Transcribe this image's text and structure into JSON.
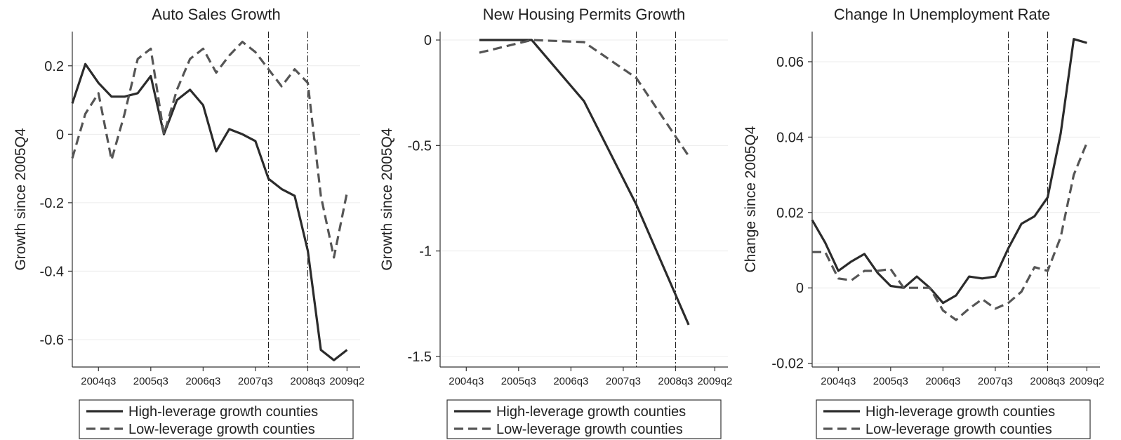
{
  "chart_data": [
    {
      "type": "line",
      "title": "Auto Sales Growth",
      "ylabel": "Growth since 2005Q4",
      "xlabel": "",
      "x_ticks": [
        "2004q3",
        "2005q3",
        "2006q3",
        "2007q3",
        "2008q3",
        "2009q2"
      ],
      "y_ticks": [
        0.2,
        0,
        -0.2,
        -0.4,
        -0.6
      ],
      "y_tick_labels": [
        "0.2",
        "0",
        "-0.2",
        "-0.4",
        "-0.6"
      ],
      "ylim": [
        -0.68,
        0.3
      ],
      "xlim": [
        "2004q1",
        "2009q3"
      ],
      "vertical_lines": [
        "2007q4",
        "2008q3"
      ],
      "grid": true,
      "legend_position": "bottom",
      "series": [
        {
          "name": "High-leverage growth counties",
          "style": "solid",
          "x": [
            "2004q1",
            "2004q2",
            "2004q3",
            "2004q4",
            "2005q1",
            "2005q2",
            "2005q3",
            "2005q4",
            "2006q1",
            "2006q2",
            "2006q3",
            "2006q4",
            "2007q1",
            "2007q2",
            "2007q3",
            "2007q4",
            "2008q1",
            "2008q2",
            "2008q3",
            "2008q4",
            "2009q1",
            "2009q2"
          ],
          "y": [
            0.09,
            0.205,
            0.15,
            0.11,
            0.11,
            0.12,
            0.17,
            0.0,
            0.1,
            0.13,
            0.085,
            -0.05,
            0.015,
            0.0,
            -0.02,
            -0.13,
            -0.16,
            -0.18,
            -0.34,
            -0.63,
            -0.66,
            -0.63
          ]
        },
        {
          "name": "Low-leverage growth counties",
          "style": "dashed",
          "x": [
            "2004q1",
            "2004q2",
            "2004q3",
            "2004q4",
            "2005q1",
            "2005q2",
            "2005q3",
            "2005q4",
            "2006q1",
            "2006q2",
            "2006q3",
            "2006q4",
            "2007q1",
            "2007q2",
            "2007q3",
            "2007q4",
            "2008q1",
            "2008q2",
            "2008q3",
            "2008q4",
            "2009q1",
            "2009q2"
          ],
          "y": [
            -0.07,
            0.06,
            0.12,
            -0.075,
            0.06,
            0.22,
            0.25,
            0.0,
            0.13,
            0.22,
            0.25,
            0.18,
            0.23,
            0.27,
            0.24,
            0.19,
            0.14,
            0.19,
            0.15,
            -0.18,
            -0.36,
            -0.17
          ]
        }
      ]
    },
    {
      "type": "line",
      "title": "New Housing Permits Growth",
      "ylabel": "Growth since 2005Q4",
      "xlabel": "",
      "x_ticks": [
        "2004q3",
        "2005q3",
        "2006q3",
        "2007q3",
        "2008q3",
        "2009q2"
      ],
      "y_ticks": [
        0,
        -0.5,
        -1,
        -1.5
      ],
      "y_tick_labels": [
        "0",
        "-0.5",
        "-1",
        "-1.5"
      ],
      "ylim": [
        -1.55,
        0.04
      ],
      "xlim": [
        "2004q1",
        "2009q3"
      ],
      "vertical_lines": [
        "2007q4",
        "2008q3"
      ],
      "grid": true,
      "legend_position": "bottom",
      "series": [
        {
          "name": "High-leverage growth counties",
          "style": "solid",
          "x": [
            "2004q4",
            "2005q4",
            "2006q4",
            "2007q4",
            "2008q4"
          ],
          "y": [
            0.0,
            0.0,
            -0.29,
            -0.78,
            -1.35
          ]
        },
        {
          "name": "Low-leverage growth counties",
          "style": "dashed",
          "x": [
            "2004q4",
            "2005q4",
            "2006q4",
            "2007q4",
            "2008q4"
          ],
          "y": [
            -0.06,
            0.0,
            -0.01,
            -0.18,
            -0.55
          ]
        }
      ]
    },
    {
      "type": "line",
      "title": "Change In Unemployment Rate",
      "ylabel": "Change since 2005Q4",
      "xlabel": "",
      "x_ticks": [
        "2004q3",
        "2005q3",
        "2006q3",
        "2007q3",
        "2008q3",
        "2009q2"
      ],
      "y_ticks": [
        0.06,
        0.04,
        0.02,
        0,
        -0.02
      ],
      "y_tick_labels": [
        "0.06",
        "0.04",
        "0.02",
        "0",
        "-0.02"
      ],
      "ylim": [
        -0.021,
        0.068
      ],
      "xlim": [
        "2004q1",
        "2009q3"
      ],
      "vertical_lines": [
        "2007q4",
        "2008q3"
      ],
      "grid": true,
      "legend_position": "bottom",
      "series": [
        {
          "name": "High-leverage growth counties",
          "style": "solid",
          "x": [
            "2004q1",
            "2004q2",
            "2004q3",
            "2004q4",
            "2005q1",
            "2005q2",
            "2005q3",
            "2005q4",
            "2006q1",
            "2006q2",
            "2006q3",
            "2006q4",
            "2007q1",
            "2007q2",
            "2007q3",
            "2007q4",
            "2008q1",
            "2008q2",
            "2008q3",
            "2008q4",
            "2009q1",
            "2009q2"
          ],
          "y": [
            0.018,
            0.012,
            0.0045,
            0.007,
            0.009,
            0.004,
            0.0005,
            0.0,
            0.003,
            0.0,
            -0.004,
            -0.002,
            0.003,
            0.0025,
            0.003,
            0.0105,
            0.017,
            0.019,
            0.024,
            0.041,
            0.066,
            0.065
          ]
        },
        {
          "name": "Low-leverage growth counties",
          "style": "dashed",
          "x": [
            "2004q1",
            "2004q2",
            "2004q3",
            "2004q4",
            "2005q1",
            "2005q2",
            "2005q3",
            "2005q4",
            "2006q1",
            "2006q2",
            "2006q3",
            "2006q4",
            "2007q1",
            "2007q2",
            "2007q3",
            "2007q4",
            "2008q1",
            "2008q2",
            "2008q3",
            "2008q4",
            "2009q1",
            "2009q2"
          ],
          "y": [
            0.0095,
            0.0095,
            0.0025,
            0.002,
            0.0045,
            0.0045,
            0.005,
            0.0,
            0.0,
            0.0,
            -0.006,
            -0.0085,
            -0.0055,
            -0.003,
            -0.0055,
            -0.004,
            -0.001,
            0.0055,
            0.0045,
            0.0135,
            0.03,
            0.0385
          ]
        }
      ]
    }
  ]
}
